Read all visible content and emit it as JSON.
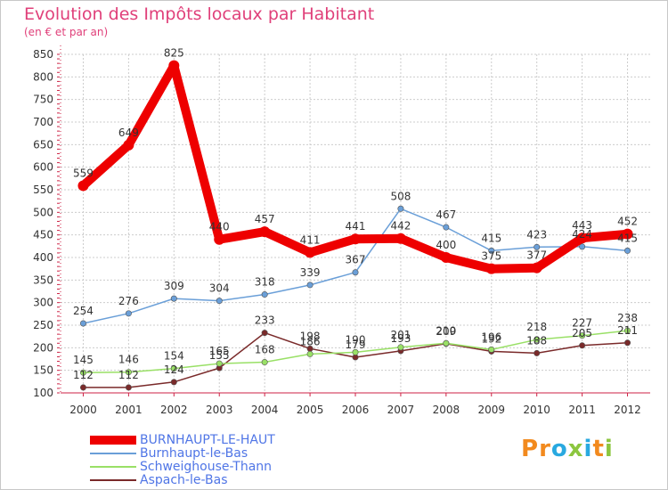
{
  "title": "Evolution des Impôts locaux par Habitant",
  "subtitle": "(en € et par an)",
  "logo": {
    "text": "Proxiti",
    "letters": [
      "P",
      "r",
      "o",
      "x",
      "i",
      "t",
      "i"
    ],
    "colors": [
      "#f28a1e",
      "#f28a1e",
      "#29a9e0",
      "#8cc63f",
      "#29a9e0",
      "#f28a1e",
      "#8cc63f"
    ]
  },
  "chart_data": {
    "type": "line",
    "title": "Evolution des Impôts locaux par Habitant",
    "subtitle": "(en € et par an)",
    "x": [
      "2000",
      "2001",
      "2002",
      "2003",
      "2004",
      "2005",
      "2006",
      "2007",
      "2008",
      "2009",
      "2010",
      "2011",
      "2012"
    ],
    "ylim": [
      100,
      850
    ],
    "yticks": [
      100,
      150,
      200,
      250,
      300,
      350,
      400,
      450,
      500,
      550,
      600,
      650,
      700,
      750,
      800,
      850
    ],
    "grid": true,
    "legend_position": "bottom-left",
    "series": [
      {
        "name": "BURNHAUPT-LE-HAUT",
        "color": "#ee0000",
        "values": [
          559,
          649,
          825,
          440,
          457,
          411,
          441,
          442,
          400,
          375,
          377,
          443,
          452
        ]
      },
      {
        "name": "Burnhaupt-le-Bas",
        "color": "#6a9fd8",
        "values": [
          254,
          276,
          309,
          304,
          318,
          339,
          367,
          508,
          467,
          415,
          423,
          424,
          415
        ]
      },
      {
        "name": "Schweighouse-Thann",
        "color": "#99e066",
        "values": [
          145,
          146,
          154,
          165,
          168,
          186,
          190,
          201,
          210,
          196,
          218,
          227,
          238
        ]
      },
      {
        "name": "Aspach-le-Bas",
        "color": "#7a2a2a",
        "values": [
          112,
          112,
          124,
          155,
          233,
          198,
          179,
          193,
          209,
          192,
          188,
          205,
          211
        ]
      }
    ]
  }
}
